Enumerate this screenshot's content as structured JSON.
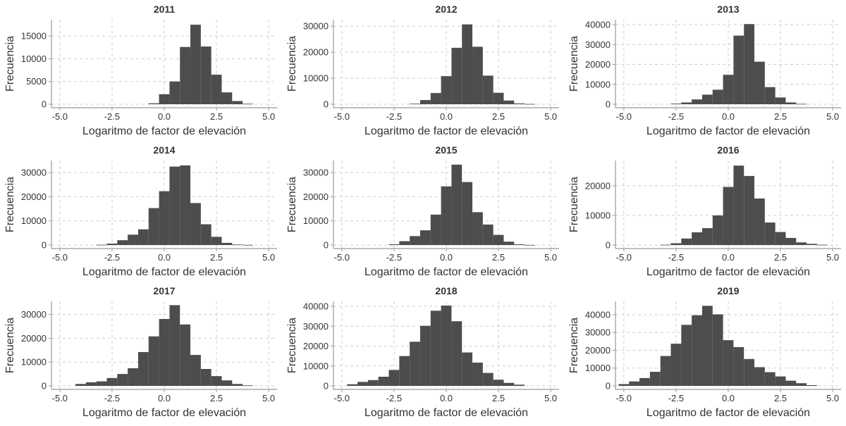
{
  "chart_data": [
    {
      "type": "bar",
      "title": "2011",
      "xlabel": "Logaritmo de factor de elevación",
      "ylabel": "Frecuencia",
      "xlim": [
        -5.4,
        5.4
      ],
      "ylim": [
        0,
        18600
      ],
      "xticks": [
        -5.0,
        -2.5,
        0.0,
        2.5,
        5.0
      ],
      "xtick_labels": [
        "-5.0",
        "-2.5",
        "0.0",
        "2.5",
        "5.0"
      ],
      "yticks": [
        0,
        5000,
        10000,
        15000
      ],
      "ytick_labels": [
        "0",
        "5000",
        "10000",
        "15000"
      ],
      "bin_width": 0.5,
      "bin_centers": [
        -0.5,
        0.0,
        0.5,
        1.0,
        1.5,
        2.0,
        2.5,
        3.0,
        3.5,
        4.0
      ],
      "values": [
        200,
        2200,
        5000,
        12600,
        17500,
        12700,
        6500,
        2600,
        700,
        100
      ]
    },
    {
      "type": "bar",
      "title": "2012",
      "xlabel": "Logaritmo de factor de elevación",
      "ylabel": "Frecuencia",
      "xlim": [
        -5.4,
        5.4
      ],
      "ylim": [
        0,
        32500
      ],
      "xticks": [
        -5.0,
        -2.5,
        0.0,
        2.5,
        5.0
      ],
      "xtick_labels": [
        "-5.0",
        "-2.5",
        "0.0",
        "2.5",
        "5.0"
      ],
      "yticks": [
        0,
        10000,
        20000,
        30000
      ],
      "ytick_labels": [
        "0",
        "10000",
        "20000",
        "30000"
      ],
      "bin_width": 0.5,
      "bin_centers": [
        -1.5,
        -1.0,
        -0.5,
        0.0,
        0.5,
        1.0,
        1.5,
        2.0,
        2.5,
        3.0,
        3.5,
        4.0
      ],
      "values": [
        200,
        1600,
        4300,
        10800,
        21700,
        30700,
        22100,
        11000,
        4400,
        1400,
        300,
        100
      ]
    },
    {
      "type": "bar",
      "title": "2013",
      "xlabel": "Logaritmo de factor de elevación",
      "ylabel": "Frecuencia",
      "xlim": [
        -5.4,
        5.4
      ],
      "ylim": [
        0,
        42500
      ],
      "xticks": [
        -5.0,
        -2.5,
        0.0,
        2.5,
        5.0
      ],
      "xtick_labels": [
        "-5.0",
        "-2.5",
        "0.0",
        "2.5",
        "5.0"
      ],
      "yticks": [
        0,
        10000,
        20000,
        30000,
        40000
      ],
      "ytick_labels": [
        "0",
        "10000",
        "20000",
        "30000",
        "40000"
      ],
      "bin_width": 0.5,
      "bin_centers": [
        -2.5,
        -2.0,
        -1.5,
        -1.0,
        -0.5,
        0.0,
        0.5,
        1.0,
        1.5,
        2.0,
        2.5,
        3.0,
        3.5
      ],
      "values": [
        300,
        900,
        2400,
        4800,
        7300,
        14800,
        34500,
        40300,
        21400,
        8600,
        3400,
        900,
        200
      ]
    },
    {
      "type": "bar",
      "title": "2014",
      "xlabel": "Logaritmo de factor de elevación",
      "ylabel": "Frecuencia",
      "xlim": [
        -5.4,
        5.4
      ],
      "ylim": [
        0,
        35000
      ],
      "xticks": [
        -5.0,
        -2.5,
        0.0,
        2.5,
        5.0
      ],
      "xtick_labels": [
        "-5.0",
        "-2.5",
        "0.0",
        "2.5",
        "5.0"
      ],
      "yticks": [
        0,
        10000,
        20000,
        30000
      ],
      "ytick_labels": [
        "0",
        "10000",
        "20000",
        "30000"
      ],
      "bin_width": 0.5,
      "bin_centers": [
        -3.0,
        -2.5,
        -2.0,
        -1.5,
        -1.0,
        -0.5,
        0.0,
        0.5,
        1.0,
        1.5,
        2.0,
        2.5,
        3.0,
        3.5,
        4.0
      ],
      "values": [
        100,
        600,
        2000,
        4300,
        6500,
        15300,
        22300,
        32500,
        33000,
        17400,
        8600,
        3400,
        900,
        200,
        50
      ]
    },
    {
      "type": "bar",
      "title": "2015",
      "xlabel": "Logaritmo de factor de elevación",
      "ylabel": "Frecuencia",
      "xlim": [
        -5.4,
        5.4
      ],
      "ylim": [
        0,
        35000
      ],
      "xticks": [
        -5.0,
        -2.5,
        0.0,
        2.5,
        5.0
      ],
      "xtick_labels": [
        "-5.0",
        "-2.5",
        "0.0",
        "2.5",
        "5.0"
      ],
      "yticks": [
        0,
        10000,
        20000,
        30000
      ],
      "ytick_labels": [
        "0",
        "10000",
        "20000",
        "30000"
      ],
      "bin_width": 0.5,
      "bin_centers": [
        -2.5,
        -2.0,
        -1.5,
        -1.0,
        -0.5,
        0.0,
        0.5,
        1.0,
        1.5,
        2.0,
        2.5,
        3.0,
        3.5,
        4.0
      ],
      "values": [
        300,
        1600,
        3700,
        6100,
        12600,
        24300,
        33300,
        26100,
        13600,
        8500,
        4200,
        1400,
        300,
        50
      ]
    },
    {
      "type": "bar",
      "title": "2016",
      "xlabel": "Logaritmo de factor de elevación",
      "ylabel": "Frecuencia",
      "xlim": [
        -5.4,
        5.4
      ],
      "ylim": [
        0,
        28500
      ],
      "xticks": [
        -5.0,
        -2.5,
        0.0,
        2.5,
        5.0
      ],
      "xtick_labels": [
        "-5.0",
        "-2.5",
        "0.0",
        "2.5",
        "5.0"
      ],
      "yticks": [
        0,
        10000,
        20000
      ],
      "ytick_labels": [
        "0",
        "10000",
        "20000"
      ],
      "bin_width": 0.5,
      "bin_centers": [
        -3.0,
        -2.5,
        -2.0,
        -1.5,
        -1.0,
        -0.5,
        0.0,
        0.5,
        1.0,
        1.5,
        2.0,
        2.5,
        3.0,
        3.5,
        4.0,
        4.5
      ],
      "values": [
        100,
        600,
        2200,
        4300,
        5700,
        10000,
        19600,
        26800,
        23300,
        15700,
        7600,
        4400,
        2400,
        900,
        400,
        100
      ]
    },
    {
      "type": "bar",
      "title": "2017",
      "xlabel": "Logaritmo de factor de elevación",
      "ylabel": "Frecuencia",
      "xlim": [
        -5.4,
        5.4
      ],
      "ylim": [
        0,
        35500
      ],
      "xticks": [
        -5.0,
        -2.5,
        0.0,
        2.5,
        5.0
      ],
      "xtick_labels": [
        "-5.0",
        "-2.5",
        "0.0",
        "2.5",
        "5.0"
      ],
      "yticks": [
        0,
        10000,
        20000,
        30000
      ],
      "ytick_labels": [
        "0",
        "10000",
        "20000",
        "30000"
      ],
      "bin_width": 0.5,
      "bin_centers": [
        -4.0,
        -3.5,
        -3.0,
        -2.5,
        -2.0,
        -1.5,
        -1.0,
        -0.5,
        0.0,
        0.5,
        1.0,
        1.5,
        2.0,
        2.5,
        3.0,
        3.5,
        4.0
      ],
      "values": [
        800,
        1500,
        1900,
        3300,
        5000,
        7400,
        14200,
        20800,
        28100,
        33900,
        25800,
        13000,
        7100,
        4100,
        2300,
        800,
        200
      ]
    },
    {
      "type": "bar",
      "title": "2018",
      "xlabel": "Logaritmo de factor de elevación",
      "ylabel": "Frecuencia",
      "xlim": [
        -5.4,
        5.4
      ],
      "ylim": [
        0,
        42500
      ],
      "xticks": [
        -5.0,
        -2.5,
        0.0,
        2.5,
        5.0
      ],
      "xtick_labels": [
        "-5.0",
        "-2.5",
        "0.0",
        "2.5",
        "5.0"
      ],
      "yticks": [
        0,
        10000,
        20000,
        30000,
        40000
      ],
      "ytick_labels": [
        "0",
        "10000",
        "20000",
        "30000",
        "40000"
      ],
      "bin_width": 0.5,
      "bin_centers": [
        -4.5,
        -4.0,
        -3.5,
        -3.0,
        -2.5,
        -2.0,
        -1.5,
        -1.0,
        -0.5,
        0.0,
        0.5,
        1.0,
        1.5,
        2.0,
        2.5,
        3.0,
        3.5
      ],
      "values": [
        800,
        2000,
        2900,
        4600,
        8000,
        15000,
        22200,
        30200,
        37800,
        40400,
        32500,
        16800,
        11700,
        6500,
        3100,
        1500,
        600
      ]
    },
    {
      "type": "bar",
      "title": "2019",
      "xlabel": "Logaritmo de factor de elevación",
      "ylabel": "Frecuencia",
      "xlim": [
        -5.4,
        5.4
      ],
      "ylim": [
        0,
        47500
      ],
      "xticks": [
        -5.0,
        -2.5,
        0.0,
        2.5,
        5.0
      ],
      "xtick_labels": [
        "-5.0",
        "-2.5",
        "0.0",
        "2.5",
        "5.0"
      ],
      "yticks": [
        0,
        10000,
        20000,
        30000,
        40000
      ],
      "ytick_labels": [
        "0",
        "10000",
        "20000",
        "30000",
        "40000"
      ],
      "bin_width": 0.5,
      "bin_centers": [
        -5.0,
        -4.5,
        -4.0,
        -3.5,
        -3.0,
        -2.5,
        -2.0,
        -1.5,
        -1.0,
        -0.5,
        0.0,
        0.5,
        1.0,
        1.5,
        2.0,
        2.5,
        3.0,
        3.5,
        4.0
      ],
      "values": [
        1000,
        2500,
        4400,
        7900,
        16800,
        23700,
        34300,
        39700,
        45000,
        40200,
        25700,
        21800,
        15100,
        10500,
        7700,
        5300,
        2900,
        1500,
        400
      ]
    }
  ],
  "style": {
    "bar_color": "#4d4d4d",
    "grid_color": "#cfcfcf",
    "axis_color": "#999999",
    "text_color": "#333333",
    "title_color": "#333333"
  }
}
